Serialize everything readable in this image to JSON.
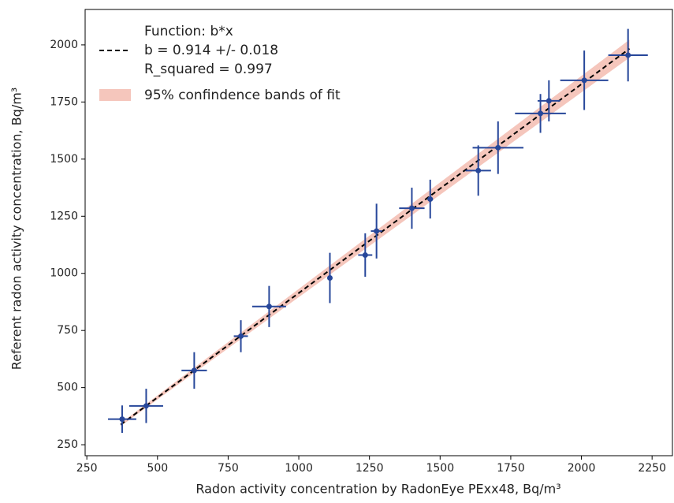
{
  "chart_data": {
    "type": "scatter",
    "xlabel": "Radon activity concentration by RadonEye PExx48, Bq/m³",
    "ylabel": "Referent radon activity concentration, Bq/m³",
    "xlim": [
      244,
      2322
    ],
    "ylim": [
      202,
      2155
    ],
    "xticks": [
      250,
      500,
      750,
      1000,
      1250,
      1500,
      1750,
      2000,
      2250
    ],
    "yticks": [
      250,
      500,
      750,
      1000,
      1250,
      1500,
      1750,
      2000
    ],
    "series": [
      {
        "color": "#27479a",
        "x": [
          375,
          460,
          630,
          795,
          895,
          1110,
          1235,
          1275,
          1400,
          1465,
          1635,
          1705,
          1855,
          1885,
          2010,
          2165
        ],
        "values": [
          362,
          420,
          575,
          725,
          855,
          980,
          1080,
          1185,
          1285,
          1325,
          1450,
          1550,
          1700,
          1755,
          1845,
          1955
        ],
        "xerr": [
          50,
          60,
          45,
          25,
          60,
          5,
          25,
          20,
          45,
          10,
          45,
          90,
          90,
          40,
          85,
          70
        ],
        "yerr": [
          60,
          75,
          80,
          70,
          90,
          110,
          95,
          120,
          90,
          85,
          110,
          115,
          85,
          90,
          130,
          115
        ]
      }
    ],
    "fit": {
      "color": "#000000",
      "legend_lines": [
        "Function: b*x",
        "b = 0.914 +/- 0.018",
        "R_squared = 0.997"
      ],
      "x": [
        370,
        2170
      ],
      "values": [
        338.2,
        1983.4
      ]
    },
    "band": {
      "color": "#f2b3a5",
      "name": "95% confindence bands of fit",
      "x": [
        370,
        2170
      ],
      "lower": [
        331.5,
        1944.3
      ],
      "upper": [
        344.8,
        2022.4
      ]
    }
  }
}
